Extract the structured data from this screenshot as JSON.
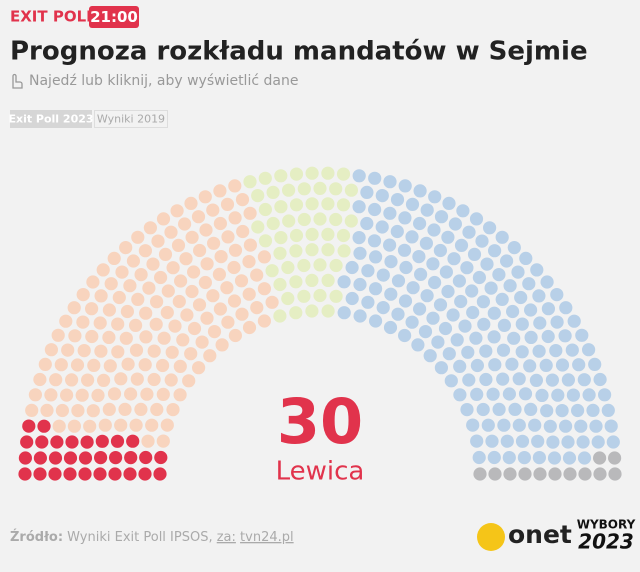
{
  "chart_data": {
    "type": "parliament",
    "badge": "EXIT POLL",
    "time": "21:00",
    "title": "Prognoza rozkładu mandatów w Sejmie",
    "subtitle": "Najedź lub kliknij, aby wyświetlić dane",
    "tabs": [
      "Exit Poll 2023",
      "Wyniki 2019"
    ],
    "source_label": "Źródło:",
    "source_text": "Wyniki Exit Poll IPSOS,",
    "source_via": "za:",
    "source_link": "tvn24.pl",
    "logo": "onet",
    "brand_top": "WYBORY",
    "brand_bottom": "2023",
    "series": [
      {
        "name": "Lewica",
        "color": "#e1334c",
        "values": [
          30
        ]
      },
      {
        "color": "#f8d4be",
        "values": [
          163
        ]
      },
      {
        "color": "#e5eec3",
        "values": [
          55
        ]
      },
      {
        "color": "#b8d0e8",
        "values": [
          200
        ]
      },
      {
        "color": "#b9b9bb",
        "values": [
          12
        ]
      }
    ]
  }
}
